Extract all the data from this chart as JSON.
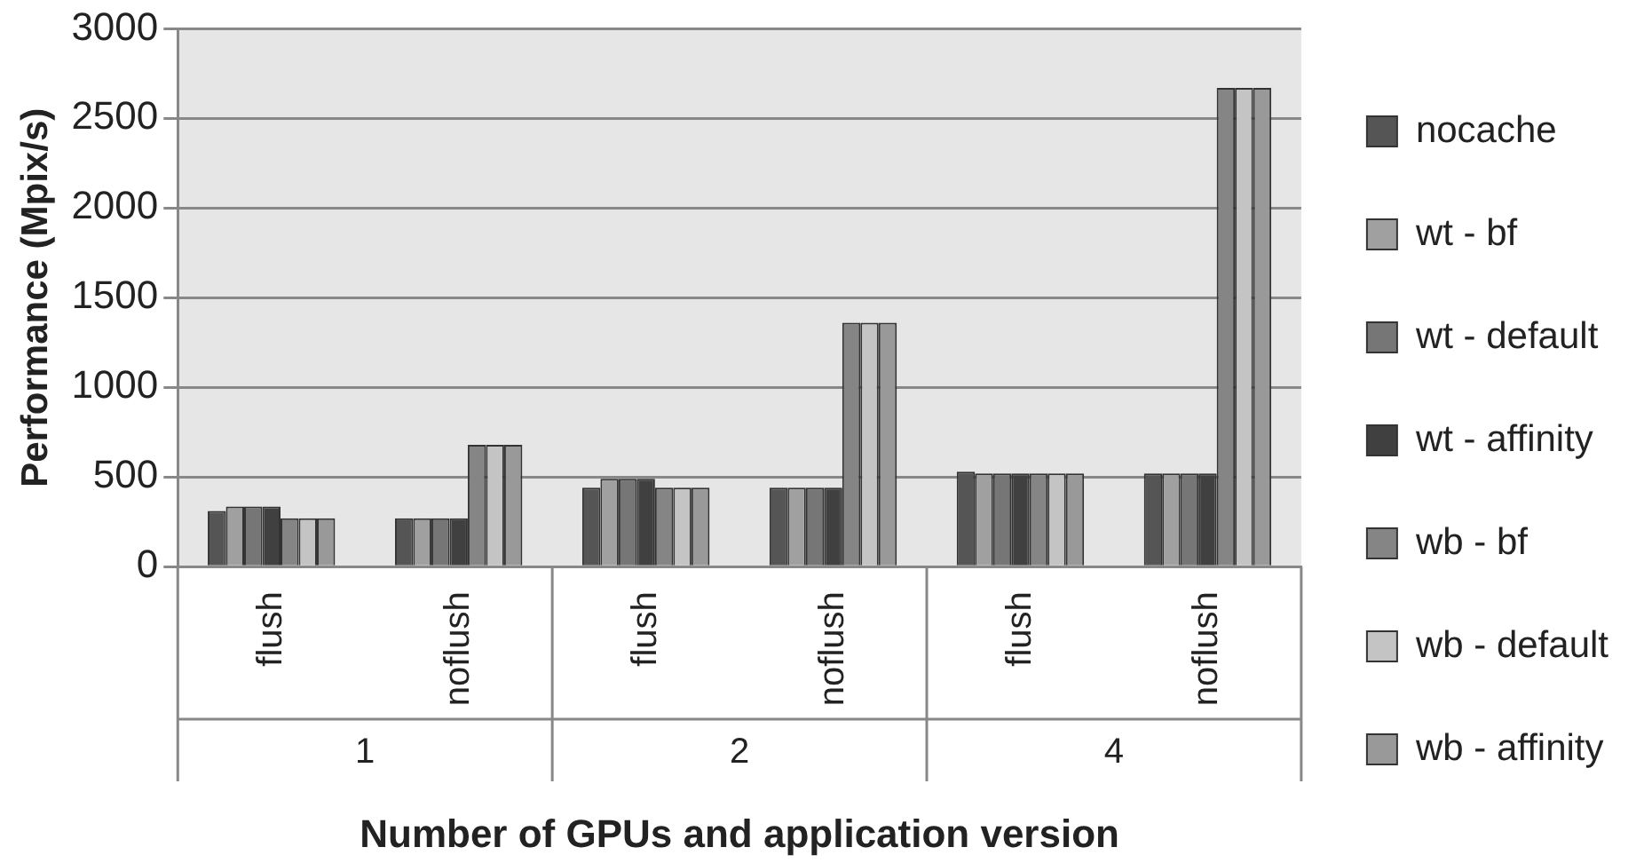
{
  "chart_data": {
    "type": "bar",
    "xlabel": "Number of GPUs and application version",
    "ylabel": "Performance (Mpix/s)",
    "categories": [
      "flush",
      "noflush",
      "flush",
      "noflush",
      "flush",
      "noflush"
    ],
    "annotations": [
      "1",
      "2",
      "4"
    ],
    "series": [
      {
        "name": "nocache",
        "color": "#555555",
        "values": [
          310,
          270,
          440,
          440,
          530,
          520
        ]
      },
      {
        "name": "wt - bf",
        "color": "#a0a0a0",
        "values": [
          335,
          270,
          490,
          440,
          520,
          520
        ]
      },
      {
        "name": "wt - default",
        "color": "#767676",
        "values": [
          335,
          270,
          490,
          440,
          520,
          520
        ]
      },
      {
        "name": "wt - affinity",
        "color": "#404040",
        "values": [
          335,
          270,
          490,
          440,
          520,
          520
        ]
      },
      {
        "name": "wb - bf",
        "color": "#858585",
        "values": [
          270,
          680,
          440,
          1360,
          520,
          2670
        ]
      },
      {
        "name": "wb - default",
        "color": "#c4c4c4",
        "values": [
          270,
          680,
          440,
          1360,
          520,
          2670
        ]
      },
      {
        "name": "wb - affinity",
        "color": "#999999",
        "values": [
          270,
          680,
          440,
          1360,
          520,
          2670
        ]
      }
    ],
    "ylim": [
      0,
      3000
    ],
    "yticks": [
      0,
      500,
      1000,
      1500,
      2000,
      2500,
      3000
    ],
    "grid": "y",
    "legend": "right"
  }
}
